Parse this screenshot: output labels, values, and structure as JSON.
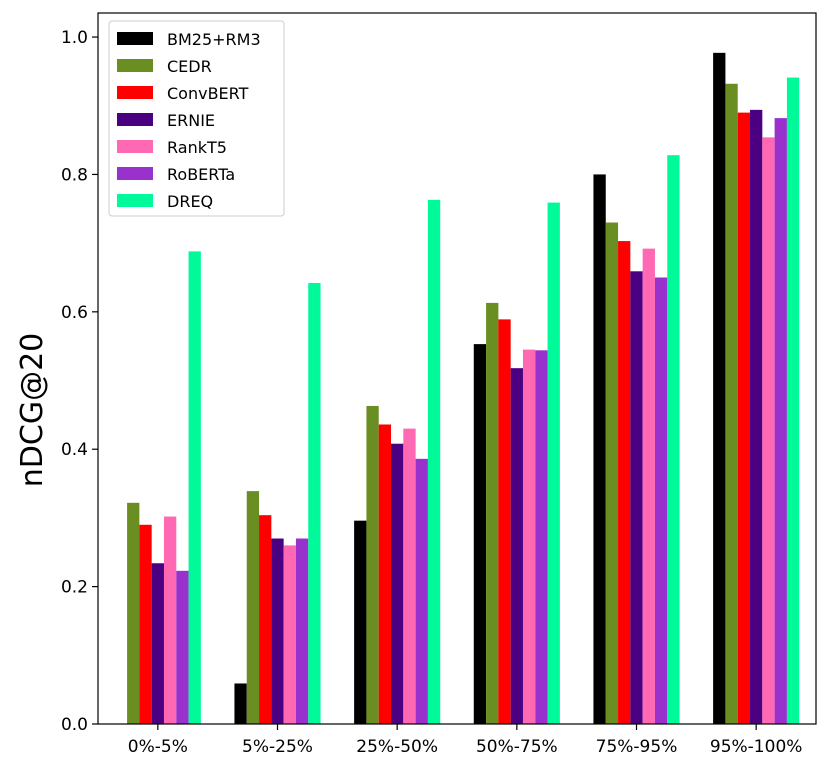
{
  "chart_data": {
    "type": "bar",
    "title": "",
    "xlabel": "",
    "ylabel": "nDCG@20",
    "ylim": [
      0.0,
      1.035
    ],
    "yticks": [
      "0.0",
      "0.2",
      "0.4",
      "0.6",
      "0.8",
      "1.0"
    ],
    "ytick_values": [
      0.0,
      0.2,
      0.4,
      0.6,
      0.8,
      1.0
    ],
    "categories": [
      "0%-5%",
      "5%-25%",
      "25%-50%",
      "50%-75%",
      "75%-95%",
      "95%-100%"
    ],
    "legend_position": "top-left",
    "grid": false,
    "series": [
      {
        "name": "BM25+RM3",
        "color": "#000000",
        "values": [
          0.0,
          0.059,
          0.296,
          0.553,
          0.8,
          0.977
        ]
      },
      {
        "name": "CEDR",
        "color": "#6b8e23",
        "values": [
          0.322,
          0.339,
          0.463,
          0.613,
          0.73,
          0.932
        ]
      },
      {
        "name": "ConvBERT",
        "color": "#ff0000",
        "values": [
          0.29,
          0.304,
          0.436,
          0.589,
          0.703,
          0.89
        ]
      },
      {
        "name": "ERNIE",
        "color": "#4b0082",
        "values": [
          0.234,
          0.27,
          0.408,
          0.518,
          0.659,
          0.894
        ]
      },
      {
        "name": "RankT5",
        "color": "#ff69b4",
        "values": [
          0.302,
          0.26,
          0.43,
          0.545,
          0.692,
          0.854
        ]
      },
      {
        "name": "RoBERTa",
        "color": "#9932cc",
        "values": [
          0.223,
          0.27,
          0.386,
          0.544,
          0.65,
          0.882
        ]
      },
      {
        "name": "DREQ",
        "color": "#00fa9a",
        "values": [
          0.688,
          0.642,
          0.763,
          0.759,
          0.828,
          0.941
        ]
      }
    ]
  }
}
